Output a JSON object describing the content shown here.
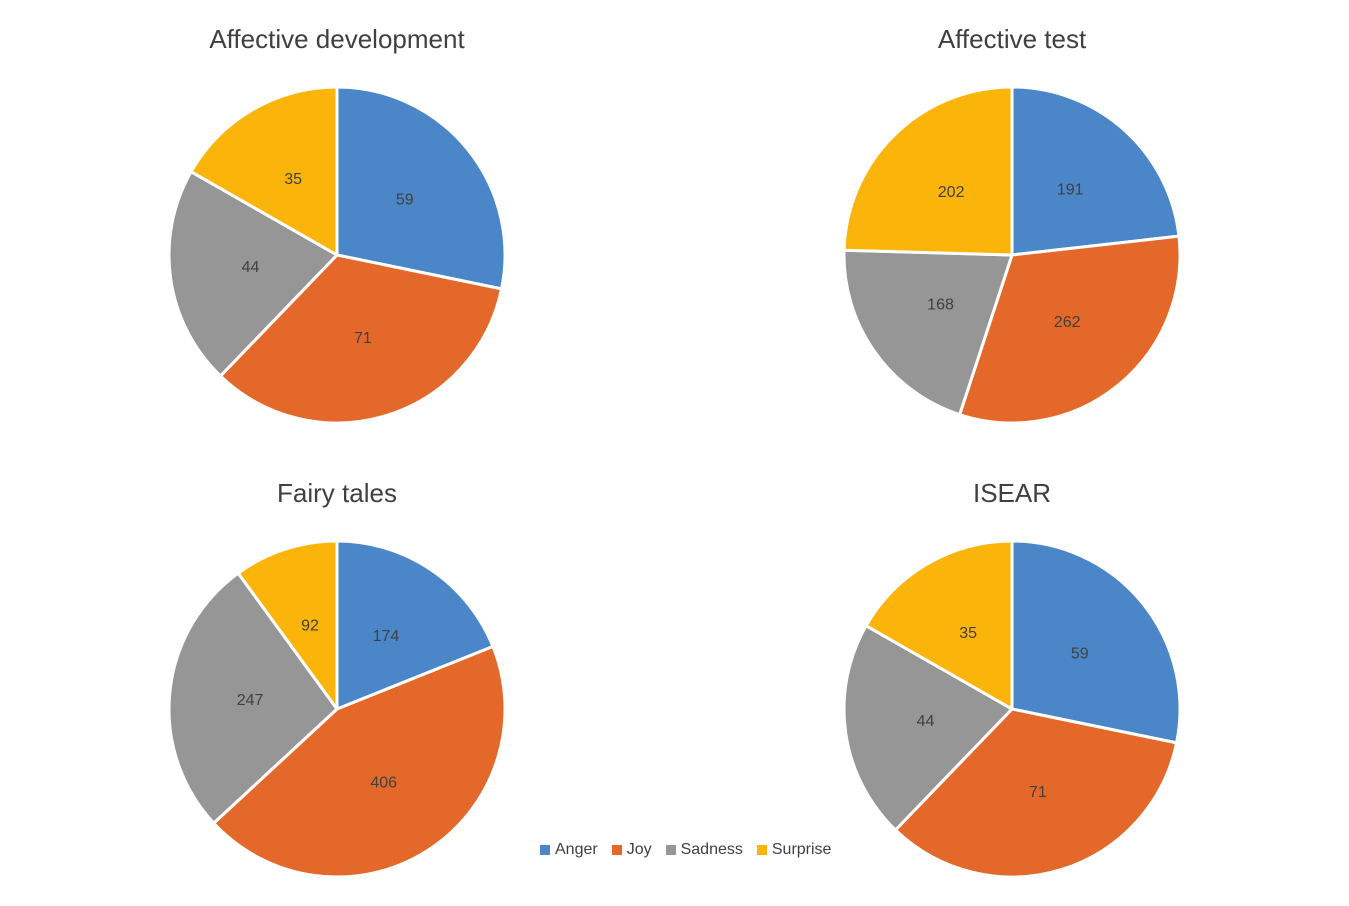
{
  "colors": {
    "Anger": "#4a86c8",
    "Joy": "#e4682a",
    "Sadness": "#969696",
    "Surprise": "#fbb40a"
  },
  "chart_data": [
    {
      "type": "pie",
      "title": "Affective development",
      "categories": [
        "Anger",
        "Joy",
        "Sadness",
        "Surprise"
      ],
      "values": [
        59,
        71,
        44,
        35
      ]
    },
    {
      "type": "pie",
      "title": "Affective test",
      "categories": [
        "Anger",
        "Joy",
        "Sadness",
        "Surprise"
      ],
      "values": [
        191,
        262,
        168,
        202
      ]
    },
    {
      "type": "pie",
      "title": "Fairy tales",
      "categories": [
        "Anger",
        "Joy",
        "Sadness",
        "Surprise"
      ],
      "values": [
        174,
        406,
        247,
        92
      ]
    },
    {
      "type": "pie",
      "title": "ISEAR",
      "categories": [
        "Anger",
        "Joy",
        "Sadness",
        "Surprise"
      ],
      "values": [
        59,
        71,
        44,
        35
      ]
    }
  ],
  "legend": {
    "placement": "bottom-center",
    "items": [
      "Anger",
      "Joy",
      "Sadness",
      "Surprise"
    ]
  }
}
